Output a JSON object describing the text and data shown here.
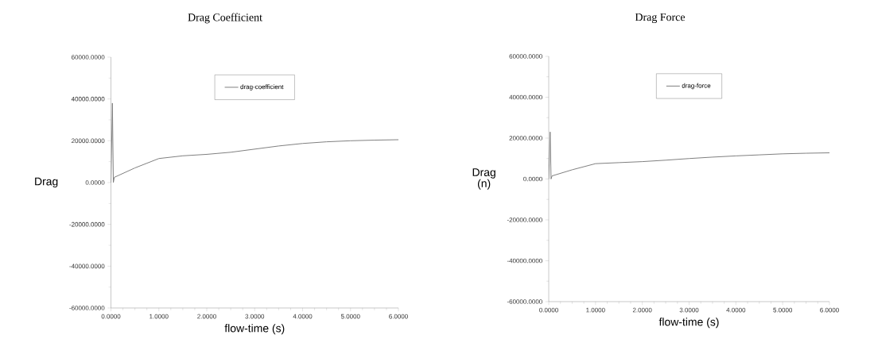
{
  "chart_data": [
    {
      "type": "line",
      "title": "Drag Coefficient",
      "xlabel": "flow-time (s)",
      "ylabel": "Drag",
      "legend": "top",
      "x": [
        0.0,
        0.03,
        0.05,
        0.07,
        0.5,
        1.0,
        1.5,
        2.0,
        2.5,
        3.0,
        3.5,
        4.0,
        4.5,
        5.0,
        5.5,
        6.0
      ],
      "series": [
        {
          "name": "drag-coefficient",
          "color": "#808080",
          "values": [
            0,
            38000,
            0,
            2500,
            7000,
            11500,
            12800,
            13500,
            14500,
            16000,
            17500,
            18700,
            19500,
            20000,
            20300,
            20500
          ]
        }
      ],
      "xlim": [
        0,
        6
      ],
      "ylim": [
        -60000,
        60000
      ],
      "xticks": [
        {
          "value": 0,
          "label": "0.0000"
        },
        {
          "value": 1,
          "label": "1.0000"
        },
        {
          "value": 2,
          "label": "2.0000"
        },
        {
          "value": 3,
          "label": "3.0000"
        },
        {
          "value": 4,
          "label": "4.0000"
        },
        {
          "value": 5,
          "label": "5.0000"
        },
        {
          "value": 6,
          "label": "6.0000"
        }
      ],
      "yticks": [
        {
          "value": -60000,
          "label": "-60000.0000"
        },
        {
          "value": -40000,
          "label": "-40000.0000"
        },
        {
          "value": -20000,
          "label": "-20000.0000"
        },
        {
          "value": 0,
          "label": "0.0000"
        },
        {
          "value": 20000,
          "label": "20000.0000"
        },
        {
          "value": 40000,
          "label": "40000.0000"
        },
        {
          "value": 60000,
          "label": "60000.0000"
        }
      ]
    },
    {
      "type": "line",
      "title": "Drag Force",
      "xlabel": "flow-time (s)",
      "ylabel": "Drag (n)",
      "legend": "top",
      "x": [
        0.0,
        0.03,
        0.05,
        0.07,
        0.5,
        1.0,
        1.5,
        2.0,
        2.5,
        3.0,
        3.5,
        4.0,
        4.5,
        5.0,
        5.5,
        6.0
      ],
      "series": [
        {
          "name": "drag-force",
          "color": "#808080",
          "values": [
            0,
            23000,
            0,
            1500,
            4500,
            7500,
            8000,
            8500,
            9200,
            10000,
            10700,
            11300,
            11800,
            12300,
            12600,
            12800
          ]
        }
      ],
      "xlim": [
        0,
        6
      ],
      "ylim": [
        -60000,
        60000
      ],
      "xticks": [
        {
          "value": 0,
          "label": "0.0000"
        },
        {
          "value": 1,
          "label": "1.0000"
        },
        {
          "value": 2,
          "label": "2.0000"
        },
        {
          "value": 3,
          "label": "3.0000"
        },
        {
          "value": 4,
          "label": "4.0000"
        },
        {
          "value": 5,
          "label": "5.0000"
        },
        {
          "value": 6,
          "label": "6.0000"
        }
      ],
      "yticks": [
        {
          "value": -60000,
          "label": "-60000.0000"
        },
        {
          "value": -40000,
          "label": "-40000.0000"
        },
        {
          "value": -20000,
          "label": "-20000.0000"
        },
        {
          "value": 0,
          "label": "0.0000"
        },
        {
          "value": 20000,
          "label": "20000.0000"
        },
        {
          "value": 40000,
          "label": "40000.0000"
        },
        {
          "value": 60000,
          "label": "60000.0000"
        }
      ]
    }
  ]
}
